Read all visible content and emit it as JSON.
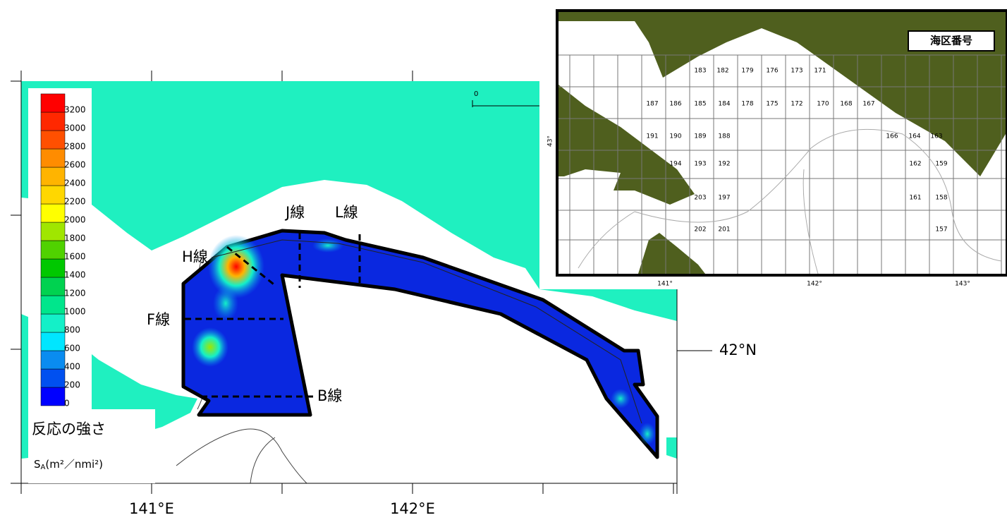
{
  "map": {
    "section_labels": [
      "H線",
      "J線",
      "L線",
      "F線",
      "B線"
    ],
    "lat_label": "42°N",
    "lon_labels": [
      "141°E",
      "142°E"
    ],
    "scale_label": "0",
    "legend": {
      "title": "反応の強さ",
      "unit": {
        "symbol": "S",
        "subscript": "A",
        "rest": "(m²／nmi²)"
      },
      "ticks": [
        "0",
        "200",
        "400",
        "600",
        "800",
        "1000",
        "1200",
        "1400",
        "1600",
        "1800",
        "2000",
        "2200",
        "2400",
        "2600",
        "2800",
        "3000",
        "3200"
      ],
      "colors": [
        "#0000ff",
        "#0050f0",
        "#0a8cf0",
        "#00e6ff",
        "#14f0c8",
        "#00e68c",
        "#00d250",
        "#00c800",
        "#50d200",
        "#a0e600",
        "#ffff00",
        "#ffd700",
        "#ffb400",
        "#ff8c00",
        "#ff5000",
        "#ff2800",
        "#ff0000"
      ]
    },
    "inset": {
      "title": "海区番号",
      "lon_labels": [
        "141°",
        "142°",
        "143°"
      ],
      "lat_label": "43°",
      "cells": [
        "183",
        "182",
        "179",
        "176",
        "173",
        "171",
        "187",
        "186",
        "185",
        "184",
        "178",
        "175",
        "172",
        "170",
        "168",
        "167",
        "191",
        "190",
        "189",
        "188",
        "166",
        "164",
        "163",
        "194",
        "193",
        "192",
        "162",
        "159",
        "203",
        "197",
        "161",
        "158",
        "202",
        "201",
        "157"
      ]
    }
  }
}
